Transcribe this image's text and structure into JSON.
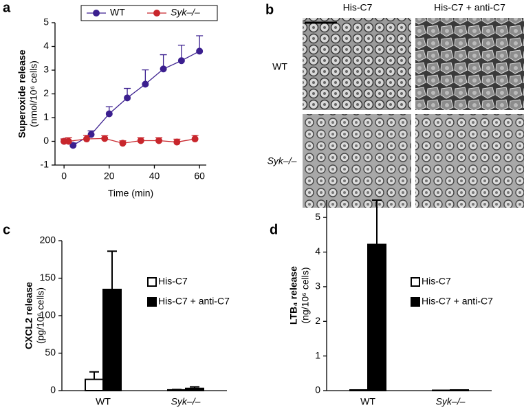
{
  "chart_data": [
    {
      "type": "line",
      "panel": "a",
      "ylabel": [
        "Superoxide release",
        "(nmol/10⁶ cells)"
      ],
      "xlabel": "Time (min)",
      "xlim": [
        -4,
        63
      ],
      "xticks": [
        0,
        20,
        40,
        60
      ],
      "ylim": [
        -1,
        5
      ],
      "yticks": [
        -1,
        0,
        1,
        2,
        3,
        4,
        5
      ],
      "series": [
        {
          "name": "WT",
          "color": "#3b1f8f",
          "x": [
            0,
            4,
            12,
            20,
            28,
            36,
            44,
            52,
            60
          ],
          "values": [
            0,
            -0.17,
            0.29,
            1.16,
            1.83,
            2.41,
            3.05,
            3.4,
            3.8
          ],
          "errors": [
            0.1,
            0.1,
            0.15,
            0.3,
            0.4,
            0.6,
            0.6,
            0.65,
            0.65
          ]
        },
        {
          "name": "Syk–/–",
          "color": "#c8262c",
          "x": [
            0,
            2,
            10,
            18,
            26,
            34,
            42,
            50,
            58
          ],
          "values": [
            0,
            0,
            0.1,
            0.12,
            -0.08,
            0.03,
            0.03,
            -0.03,
            0.1
          ],
          "errors": [
            0.1,
            0.15,
            0.15,
            0.12,
            0.1,
            0.12,
            0.12,
            0.12,
            0.15
          ]
        }
      ]
    },
    {
      "type": "bar",
      "panel": "c",
      "ylabel": [
        "CXCL2 release",
        "(pg/10⁶ cells)"
      ],
      "categories": [
        "WT",
        "Syk–/–"
      ],
      "ylim": [
        0,
        200
      ],
      "yticks": [
        0,
        50,
        100,
        150,
        200
      ],
      "series": [
        {
          "name": "His-C7",
          "color": "#ffffff",
          "values": [
            15,
            1
          ],
          "errors": [
            10,
            0.5
          ]
        },
        {
          "name": "His-C7 + anti-C7",
          "color": "#000000",
          "values": [
            135,
            3
          ],
          "errors": [
            51,
            2
          ]
        }
      ]
    },
    {
      "type": "bar",
      "panel": "d",
      "ylabel": [
        "LTB₄ release",
        "(ng/10⁶ cells)"
      ],
      "categories": [
        "WT",
        "Syk–/–"
      ],
      "ylim": [
        0,
        5.5
      ],
      "yticks": [
        0,
        1,
        2,
        3,
        4,
        5
      ],
      "series": [
        {
          "name": "His-C7",
          "color": "#ffffff",
          "values": [
            0.02,
            0.01
          ],
          "errors": [
            0,
            0
          ]
        },
        {
          "name": "His-C7 + anti-C7",
          "color": "#000000",
          "values": [
            4.22,
            0.02
          ],
          "errors": [
            1.28,
            0
          ]
        }
      ]
    }
  ],
  "panel_b": {
    "label": "b",
    "columns": [
      "His-C7",
      "His-C7 + anti-C7"
    ],
    "rows": [
      "WT",
      "Syk–/–"
    ]
  }
}
